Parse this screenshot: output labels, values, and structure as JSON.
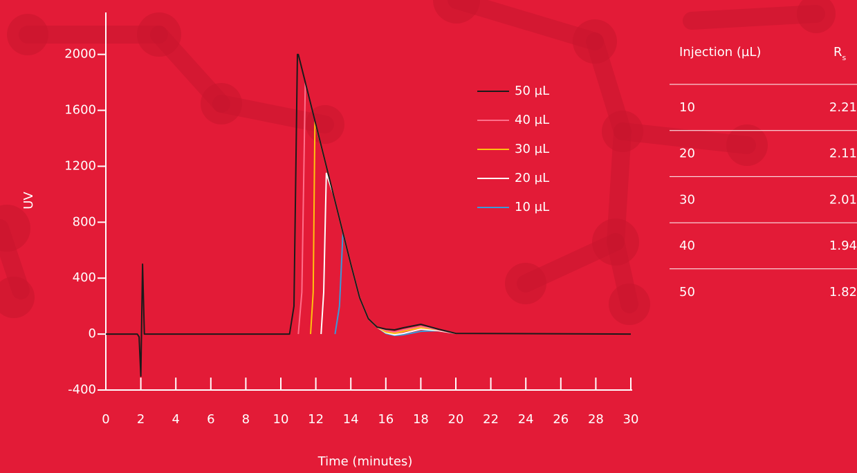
{
  "chart_data": {
    "type": "line",
    "x_label": "Time (minutes)",
    "y_label": "UV",
    "xlim": [
      0,
      30
    ],
    "xticks": [
      0,
      2,
      4,
      6,
      8,
      10,
      12,
      14,
      16,
      18,
      20,
      22,
      24,
      26,
      28,
      30
    ],
    "ylim": [
      -400,
      2300
    ],
    "yticks": [
      -400,
      0,
      400,
      800,
      1200,
      1600,
      2000
    ],
    "legend": "upper right",
    "series": [
      {
        "name": "50 µL",
        "color": "#1a1a1a",
        "x": [
          0,
          1.8,
          1.9,
          2.0,
          2.1,
          2.2,
          2.3,
          10.5,
          10.75,
          10.95,
          11.0,
          12,
          13,
          14,
          14.5,
          15,
          15.5,
          16,
          16.5,
          17,
          18,
          19,
          20,
          30
        ],
        "values": [
          0,
          0,
          -20,
          -300,
          500,
          0,
          0,
          0,
          200,
          2000,
          2000,
          1500,
          1000,
          500,
          260,
          110,
          50,
          35,
          30,
          45,
          70,
          35,
          5,
          0
        ]
      },
      {
        "name": "40 µL",
        "color": "#ff6f8a",
        "x": [
          11.0,
          11.2,
          11.4,
          12,
          13,
          14,
          14.5,
          15,
          15.5,
          16,
          16.5,
          17,
          18,
          19,
          20
        ],
        "values": [
          0,
          300,
          1800,
          1500,
          1000,
          500,
          260,
          110,
          50,
          25,
          15,
          30,
          55,
          30,
          5
        ]
      },
      {
        "name": "30 µL",
        "color": "#ffc20e",
        "x": [
          11.7,
          11.85,
          11.95,
          13,
          14,
          14.5,
          15,
          15.5,
          16,
          16.5,
          17,
          18,
          19,
          20
        ],
        "values": [
          0,
          300,
          1520,
          1000,
          500,
          260,
          110,
          50,
          15,
          5,
          20,
          45,
          30,
          5
        ]
      },
      {
        "name": "20 µL",
        "color": "#ffffff",
        "x": [
          12.3,
          12.45,
          12.6,
          13,
          14,
          14.5,
          15,
          15.5,
          16,
          16.5,
          17,
          18,
          19,
          20
        ],
        "values": [
          0,
          300,
          1150,
          1000,
          500,
          260,
          110,
          50,
          10,
          -5,
          5,
          35,
          25,
          5
        ]
      },
      {
        "name": "10 µL",
        "color": "#3a9ad9",
        "x": [
          13.1,
          13.35,
          13.55,
          14,
          14.5,
          15,
          15.5,
          16,
          16.5,
          17,
          18,
          19,
          20
        ],
        "values": [
          0,
          200,
          725,
          500,
          260,
          110,
          50,
          5,
          -10,
          -5,
          20,
          25,
          5
        ]
      }
    ]
  },
  "table": {
    "columns": [
      {
        "label": "Injection (µL)"
      },
      {
        "label": "R",
        "subscript": "s"
      }
    ],
    "rows": [
      [
        "10",
        "2.21"
      ],
      [
        "20",
        "2.11"
      ],
      [
        "30",
        "2.01"
      ],
      [
        "40",
        "1.94"
      ],
      [
        "50",
        "1.82"
      ]
    ]
  }
}
